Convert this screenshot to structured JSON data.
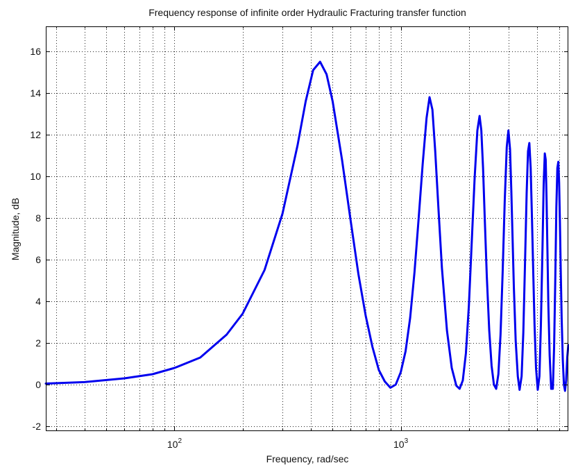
{
  "chart_data": {
    "type": "line",
    "title": "Frequency response of infinite order Hydraulic Fracturing transfer function",
    "xlabel": "Frequency, rad/sec",
    "ylabel": "Magnitude, dB",
    "x_scale": "log",
    "xlim": [
      27,
      5500
    ],
    "ylim": [
      -2.2,
      17.2
    ],
    "grid": true,
    "yticks": [
      {
        "value": -2,
        "label": "-2"
      },
      {
        "value": 0,
        "label": "0"
      },
      {
        "value": 2,
        "label": "2"
      },
      {
        "value": 4,
        "label": "4"
      },
      {
        "value": 6,
        "label": "6"
      },
      {
        "value": 8,
        "label": "8"
      },
      {
        "value": 10,
        "label": "10"
      },
      {
        "value": 12,
        "label": "12"
      },
      {
        "value": 14,
        "label": "14"
      },
      {
        "value": 16,
        "label": "16"
      }
    ],
    "xticks_major": [
      {
        "value": 100,
        "base": "10",
        "exponent": "2"
      },
      {
        "value": 1000,
        "base": "10",
        "exponent": "3"
      }
    ],
    "xticks_minor": [
      30,
      40,
      50,
      60,
      70,
      80,
      90,
      200,
      300,
      400,
      500,
      600,
      700,
      800,
      900,
      2000,
      3000,
      4000,
      5000
    ],
    "series": [
      {
        "color": "#0000ee",
        "x": [
          27,
          40,
          60,
          80,
          100,
          130,
          170,
          200,
          250,
          300,
          350,
          380,
          410,
          440,
          470,
          500,
          550,
          600,
          650,
          700,
          750,
          800,
          850,
          900,
          950,
          1000,
          1050,
          1100,
          1150,
          1200,
          1250,
          1300,
          1340,
          1380,
          1420,
          1470,
          1520,
          1600,
          1680,
          1760,
          1820,
          1880,
          1940,
          2000,
          2060,
          2120,
          2180,
          2230,
          2270,
          2310,
          2350,
          2400,
          2460,
          2520,
          2580,
          2640,
          2700,
          2760,
          2820,
          2880,
          2940,
          2990,
          3040,
          3080,
          3120,
          3160,
          3220,
          3290,
          3350,
          3420,
          3480,
          3540,
          3600,
          3650,
          3700,
          3750,
          3800,
          3850,
          3900,
          3960,
          4030,
          4100,
          4160,
          4230,
          4280,
          4330,
          4370,
          4410,
          4450,
          4490,
          4550,
          4620,
          4700,
          4760,
          4820,
          4870,
          4920,
          4970,
          5010,
          5050,
          5090,
          5140,
          5200,
          5260,
          5320,
          5380,
          5440,
          5500
        ],
        "y": [
          0.05,
          0.12,
          0.3,
          0.5,
          0.8,
          1.3,
          2.4,
          3.4,
          5.5,
          8.2,
          11.5,
          13.6,
          15.1,
          15.5,
          14.9,
          13.6,
          10.8,
          7.9,
          5.3,
          3.3,
          1.8,
          0.7,
          0.15,
          -0.15,
          0.0,
          0.6,
          1.6,
          3.2,
          5.4,
          8.0,
          10.6,
          12.8,
          13.8,
          13.2,
          11.2,
          8.3,
          5.6,
          2.6,
          0.8,
          -0.05,
          -0.2,
          0.2,
          1.5,
          3.8,
          6.9,
          9.9,
          12.2,
          12.9,
          12.2,
          10.4,
          8.0,
          5.2,
          2.6,
          0.9,
          0.0,
          -0.2,
          0.5,
          2.4,
          5.4,
          8.8,
          11.4,
          12.2,
          11.3,
          9.3,
          7.0,
          4.7,
          2.1,
          0.4,
          -0.25,
          0.4,
          2.5,
          5.8,
          9.2,
          11.2,
          11.6,
          10.4,
          8.0,
          5.4,
          2.9,
          0.8,
          -0.25,
          0.4,
          2.8,
          6.6,
          9.6,
          11.1,
          10.8,
          8.8,
          6.3,
          3.8,
          1.4,
          -0.2,
          -0.2,
          1.8,
          5.2,
          8.5,
          10.4,
          10.7,
          9.7,
          7.8,
          5.6,
          3.2,
          1.2,
          0.0,
          -0.3,
          0.2,
          1.3,
          1.9
        ]
      }
    ]
  }
}
